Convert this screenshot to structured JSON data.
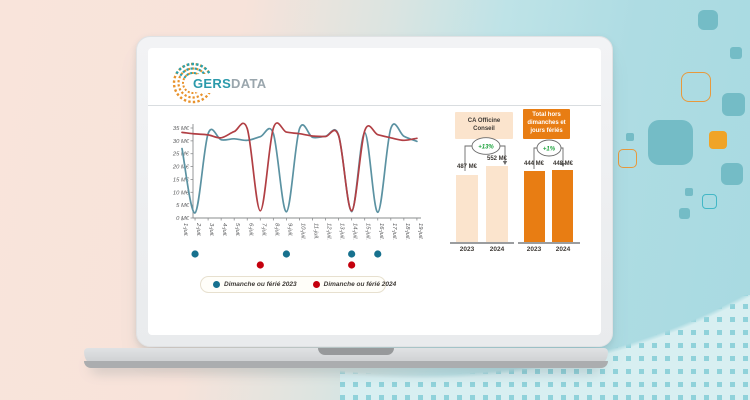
{
  "logo": {
    "text_primary": "GERS",
    "text_secondary": "DATA"
  },
  "colors": {
    "accent_teal": "#2b9aab",
    "accent_orange": "#e87d13",
    "peach_light": "#fbe4cd",
    "badge_green": "#1ca23c",
    "series_2023": "#5b92a2",
    "series_2024": "#b13f44",
    "marker_2023": "#17718e",
    "marker_2024": "#c4000d"
  },
  "chart_data": [
    {
      "type": "line",
      "title": "",
      "x": [
        "1-juil.",
        "2-juil.",
        "3-juil.",
        "4-juil.",
        "5-juil.",
        "6-juil.",
        "7-juil.",
        "8-juil.",
        "9-juil.",
        "10-juil.",
        "11-juil.",
        "12-juil.",
        "13-juil.",
        "14-juil.",
        "15-juil.",
        "16-juil.",
        "17-juil.",
        "18-juil.",
        "19-juil."
      ],
      "y_tick_labels": [
        "0 M€",
        "5 M€",
        "10 M€",
        "15 M€",
        "20 M€",
        "25 M€",
        "30 M€",
        "35 M€"
      ],
      "ylim": [
        0,
        35
      ],
      "grid": false,
      "legend_position": "bottom",
      "series": [
        {
          "name": "2023",
          "color": "#5b92a2",
          "values": [
            27.0,
            2.0,
            32.8,
            30.4,
            30.8,
            30.2,
            31.6,
            32.8,
            2.4,
            34.6,
            31.4,
            31.8,
            32.2,
            2.5,
            33.2,
            2.2,
            34.8,
            31.8,
            29.8
          ]
        },
        {
          "name": "2024",
          "color": "#b13f44",
          "values": [
            33.3,
            32.7,
            32.3,
            31.2,
            33.6,
            34.7,
            2.8,
            35.0,
            33.4,
            32.8,
            31.9,
            31.7,
            32.0,
            2.8,
            33.9,
            32.4,
            31.2,
            30.2,
            31.0
          ]
        }
      ],
      "markers": [
        {
          "label": "Dimanche ou férié 2023",
          "color": "#17718e",
          "days": [
            2,
            9,
            14,
            16
          ]
        },
        {
          "label": "Dimanche ou férié 2024",
          "color": "#c4000d",
          "days": [
            7,
            14
          ]
        }
      ]
    },
    {
      "type": "bar",
      "title": "CA Officine Conseil",
      "categories": [
        "2023",
        "2024"
      ],
      "values": [
        487,
        552
      ],
      "value_labels": [
        "487 M€",
        "552 M€"
      ],
      "delta_badge": "+13%",
      "bar_color": "#fbe4cd"
    },
    {
      "type": "bar",
      "title": "Total hors dimanches et jours fériés",
      "categories": [
        "2023",
        "2024"
      ],
      "values": [
        444,
        448
      ],
      "value_labels": [
        "444 M€",
        "448 M€"
      ],
      "delta_badge": "+1%",
      "bar_color": "#e87d13"
    }
  ]
}
